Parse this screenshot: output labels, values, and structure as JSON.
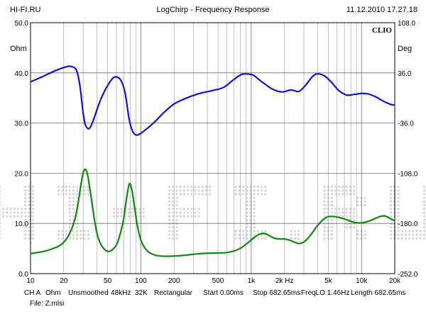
{
  "header": {
    "left": "HI-FI.RU",
    "center": "LogChirp - Frequency Response",
    "right": "11.12.2010 17.27.18"
  },
  "footer": {
    "params": [
      "CH A",
      "Ohm",
      "Unsmoothed",
      "48kHz",
      "32K",
      "Rectangular",
      "Start 0.00ms",
      "Stop 682.65ms",
      "FreqLO 1.46Hz",
      "Length 682.65ms"
    ],
    "file": "File: Z.mlsi"
  },
  "chart_data": {
    "type": "line",
    "brand": "CLIO",
    "watermark": "HI-FI.RU",
    "x_scale": "log",
    "xlim": [
      10,
      20000
    ],
    "x_ticks": [
      10,
      20,
      50,
      100,
      200,
      500,
      1000,
      2000,
      5000,
      10000,
      20000
    ],
    "x_tick_labels": [
      "10",
      "20",
      "50",
      "100",
      "200",
      "500",
      "1k",
      "2k Hz",
      "5k",
      "10k",
      "20k"
    ],
    "y_left": {
      "label": "Ohm",
      "lim": [
        0,
        50
      ],
      "ticks": [
        0,
        10,
        20,
        30,
        40,
        50
      ],
      "tick_labels": [
        "0.0",
        "10.0",
        "20.0",
        "30.0",
        "40.0",
        "50.0"
      ]
    },
    "y_right": {
      "label": "Deg",
      "lim": [
        -252,
        108
      ],
      "ticks": [
        -252,
        -180,
        -108,
        -36,
        36,
        108
      ],
      "tick_labels": [
        "-252.0",
        "-180.0",
        "-108.0",
        "-36.0",
        "36.0",
        "108.0"
      ]
    },
    "grid": true,
    "series": [
      {
        "color": "#1010dd",
        "axis": "left",
        "points": [
          [
            10,
            38.2
          ],
          [
            13,
            39.3
          ],
          [
            17,
            40.5
          ],
          [
            21,
            41.2
          ],
          [
            23,
            41.3
          ],
          [
            26,
            40.6
          ],
          [
            28,
            37.5
          ],
          [
            30,
            32.0
          ],
          [
            31.5,
            29.6
          ],
          [
            34,
            28.9
          ],
          [
            37,
            30.5
          ],
          [
            42,
            34.0
          ],
          [
            48,
            36.8
          ],
          [
            55,
            38.8
          ],
          [
            60,
            39.2
          ],
          [
            66,
            38.5
          ],
          [
            72,
            36.0
          ],
          [
            78,
            31.0
          ],
          [
            84,
            28.4
          ],
          [
            92,
            27.6
          ],
          [
            105,
            28.3
          ],
          [
            130,
            30.0
          ],
          [
            160,
            32.0
          ],
          [
            200,
            33.8
          ],
          [
            260,
            35.0
          ],
          [
            340,
            35.9
          ],
          [
            450,
            36.5
          ],
          [
            560,
            37.1
          ],
          [
            680,
            38.5
          ],
          [
            800,
            39.6
          ],
          [
            900,
            39.8
          ],
          [
            1050,
            39.5
          ],
          [
            1250,
            38.2
          ],
          [
            1550,
            36.8
          ],
          [
            1900,
            36.2
          ],
          [
            2300,
            36.6
          ],
          [
            2700,
            36.3
          ],
          [
            3100,
            37.5
          ],
          [
            3600,
            39.3
          ],
          [
            4000,
            39.8
          ],
          [
            4600,
            39.4
          ],
          [
            5300,
            38.2
          ],
          [
            6200,
            36.5
          ],
          [
            7300,
            35.6
          ],
          [
            8600,
            35.7
          ],
          [
            10000,
            35.9
          ],
          [
            11500,
            35.8
          ],
          [
            13500,
            35.2
          ],
          [
            16000,
            34.3
          ],
          [
            18500,
            33.7
          ],
          [
            20000,
            33.6
          ]
        ]
      },
      {
        "color": "#108810",
        "axis": "left",
        "points": [
          [
            10,
            4.0
          ],
          [
            13,
            4.4
          ],
          [
            16,
            5.0
          ],
          [
            19,
            5.8
          ],
          [
            22,
            7.5
          ],
          [
            25,
            10.5
          ],
          [
            27,
            14.0
          ],
          [
            28.5,
            17.5
          ],
          [
            30,
            20.0
          ],
          [
            31.5,
            20.8
          ],
          [
            33,
            19.5
          ],
          [
            35,
            16.0
          ],
          [
            37.5,
            11.5
          ],
          [
            40,
            8.0
          ],
          [
            43,
            6.0
          ],
          [
            47,
            4.8
          ],
          [
            51,
            4.4
          ],
          [
            56,
            4.9
          ],
          [
            61,
            6.0
          ],
          [
            66,
            8.5
          ],
          [
            70,
            11.0
          ],
          [
            73,
            14.0
          ],
          [
            76,
            16.5
          ],
          [
            78.5,
            17.9
          ],
          [
            81,
            17.6
          ],
          [
            84,
            16.0
          ],
          [
            88,
            13.0
          ],
          [
            93,
            9.5
          ],
          [
            99,
            7.0
          ],
          [
            106,
            5.5
          ],
          [
            116,
            4.4
          ],
          [
            130,
            3.8
          ],
          [
            150,
            3.5
          ],
          [
            200,
            3.5
          ],
          [
            260,
            3.7
          ],
          [
            350,
            4.0
          ],
          [
            470,
            4.1
          ],
          [
            600,
            4.2
          ],
          [
            720,
            4.6
          ],
          [
            830,
            5.3
          ],
          [
            950,
            6.3
          ],
          [
            1080,
            7.3
          ],
          [
            1200,
            7.9
          ],
          [
            1320,
            8.0
          ],
          [
            1450,
            7.6
          ],
          [
            1600,
            7.1
          ],
          [
            1800,
            6.9
          ],
          [
            2000,
            6.9
          ],
          [
            2200,
            6.7
          ],
          [
            2450,
            6.3
          ],
          [
            2700,
            6.0
          ],
          [
            3000,
            6.3
          ],
          [
            3400,
            7.5
          ],
          [
            3900,
            9.3
          ],
          [
            4400,
            10.6
          ],
          [
            4900,
            11.3
          ],
          [
            5400,
            11.4
          ],
          [
            6200,
            11.2
          ],
          [
            7200,
            10.8
          ],
          [
            8300,
            10.3
          ],
          [
            9400,
            10.1
          ],
          [
            10500,
            10.2
          ],
          [
            11800,
            10.5
          ],
          [
            13300,
            11.0
          ],
          [
            14800,
            11.4
          ],
          [
            16200,
            11.5
          ],
          [
            17800,
            11.1
          ],
          [
            19200,
            10.7
          ],
          [
            20000,
            10.6
          ]
        ]
      }
    ]
  }
}
